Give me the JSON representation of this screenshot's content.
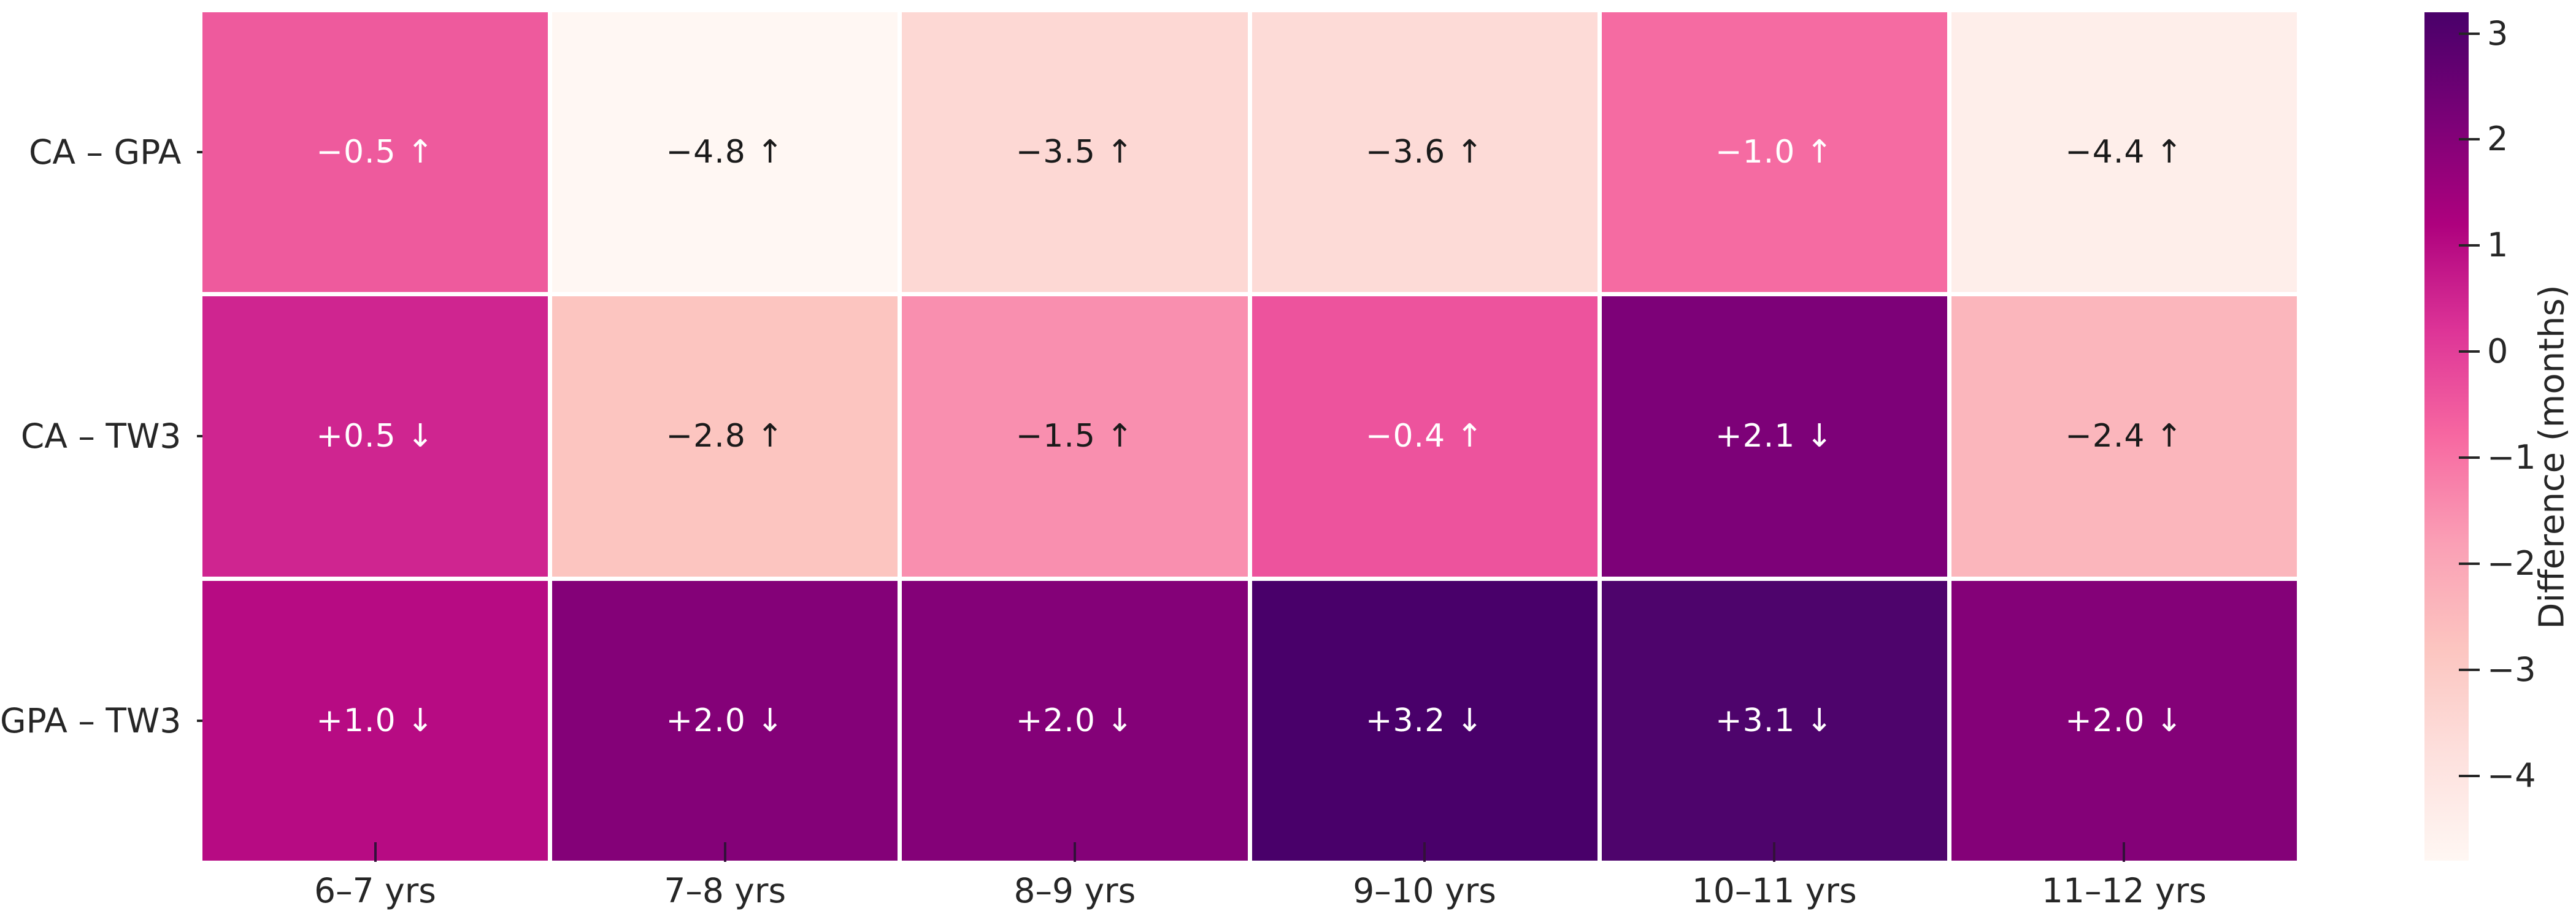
{
  "page": {
    "background": "#ffffff",
    "axis_text_color": "#262626",
    "gridline_color": "#ffffff"
  },
  "chart_data": {
    "type": "heatmap",
    "title": "",
    "xlabel": "",
    "ylabel": "",
    "x_categories": [
      "6–7 yrs",
      "7–8 yrs",
      "8–9 yrs",
      "9–10 yrs",
      "10–11 yrs",
      "11–12 yrs"
    ],
    "y_categories": [
      "CA – GPA",
      "CA – TW3",
      "GPA – TW3"
    ],
    "values": [
      [
        -0.5,
        -4.8,
        -3.5,
        -3.6,
        -1.0,
        -4.4
      ],
      [
        0.5,
        -2.8,
        -1.5,
        -0.4,
        2.1,
        -2.4
      ],
      [
        1.0,
        2.0,
        2.0,
        3.2,
        3.1,
        2.0
      ]
    ],
    "cell_labels": [
      [
        "−0.5 ↑",
        "−4.8 ↑",
        "−3.5 ↑",
        "−3.6 ↑",
        "−1.0 ↑",
        "−4.4 ↑"
      ],
      [
        "+0.5 ↓",
        "−2.8 ↑",
        "−1.5 ↑",
        "−0.4 ↑",
        "+2.1 ↓",
        "−2.4 ↑"
      ],
      [
        "+1.0 ↓",
        "+2.0 ↓",
        "+2.0 ↓",
        "+3.2 ↓",
        "+3.1 ↓",
        "+2.0 ↓"
      ]
    ],
    "cell_colors": [
      [
        "#ee5a9d",
        "#fff7f3",
        "#fdd8d4",
        "#fddbd7",
        "#f56ba2",
        "#feeeea"
      ],
      [
        "#cf2590",
        "#fcc5c0",
        "#f98faf",
        "#ed539d",
        "#7d0178",
        "#fbb6bc"
      ],
      [
        "#b70b83",
        "#840178",
        "#840178",
        "#49006a",
        "#4e046c",
        "#840178"
      ]
    ],
    "cell_text_colors": [
      [
        "#ffffff",
        "#1a1a1a",
        "#1a1a1a",
        "#1a1a1a",
        "#ffffff",
        "#1a1a1a"
      ],
      [
        "#ffffff",
        "#1a1a1a",
        "#1a1a1a",
        "#ffffff",
        "#ffffff",
        "#1a1a1a"
      ],
      [
        "#ffffff",
        "#ffffff",
        "#ffffff",
        "#ffffff",
        "#ffffff",
        "#ffffff"
      ]
    ],
    "colorbar": {
      "label": "Difference (months)",
      "tick_labels": [
        "3",
        "2",
        "1",
        "0",
        "−1",
        "−2",
        "−3",
        "−4"
      ],
      "tick_values": [
        3,
        2,
        1,
        0,
        -1,
        -2,
        -3,
        -4
      ],
      "vmin": -4.8,
      "vmax": 3.2,
      "colormap": "RdPu",
      "gradient_stops": [
        "#fff7f3",
        "#fde0dd",
        "#fcc5c0",
        "#fa9fb5",
        "#f768a1",
        "#dd3497",
        "#ae017e",
        "#7a0177",
        "#49006a"
      ]
    },
    "legend_position": "right-colorbar",
    "grid": false
  }
}
